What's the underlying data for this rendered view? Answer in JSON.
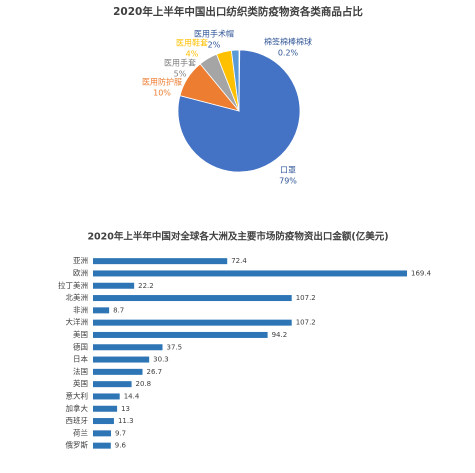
{
  "chart_data": [
    {
      "type": "pie",
      "title": "2020年上半年中国出口纺织类防疫物资各类商品占比",
      "categories": [
        "棉签棉棒棉球",
        "口罩",
        "医用防护服",
        "医用手套",
        "医用鞋套",
        "医用手术帽"
      ],
      "values": [
        0.2,
        79,
        10,
        5,
        4,
        2
      ],
      "value_labels": [
        "0.2%",
        "79%",
        "10%",
        "5%",
        "4%",
        "2%"
      ],
      "colors": [
        "#70ad47",
        "#4472c4",
        "#ed7d31",
        "#a5a5a5",
        "#ffc000",
        "#5b9bd5"
      ]
    },
    {
      "type": "hbar",
      "title": "2020年上半年中国对全球各大洲及主要市场防疫物资出口金额(亿美元)",
      "categories": [
        "亚洲",
        "欧洲",
        "拉丁美洲",
        "北美洲",
        "非洲",
        "大洋洲",
        "美国",
        "德国",
        "日本",
        "法国",
        "英国",
        "意大利",
        "加拿大",
        "西班牙",
        "荷兰",
        "俄罗斯"
      ],
      "values": [
        72.4,
        169.4,
        22.2,
        107.2,
        8.7,
        107.2,
        94.2,
        37.5,
        30.3,
        26.7,
        20.8,
        14.4,
        13,
        11.3,
        9.7,
        9.6
      ],
      "color": "#2e75b6"
    }
  ]
}
